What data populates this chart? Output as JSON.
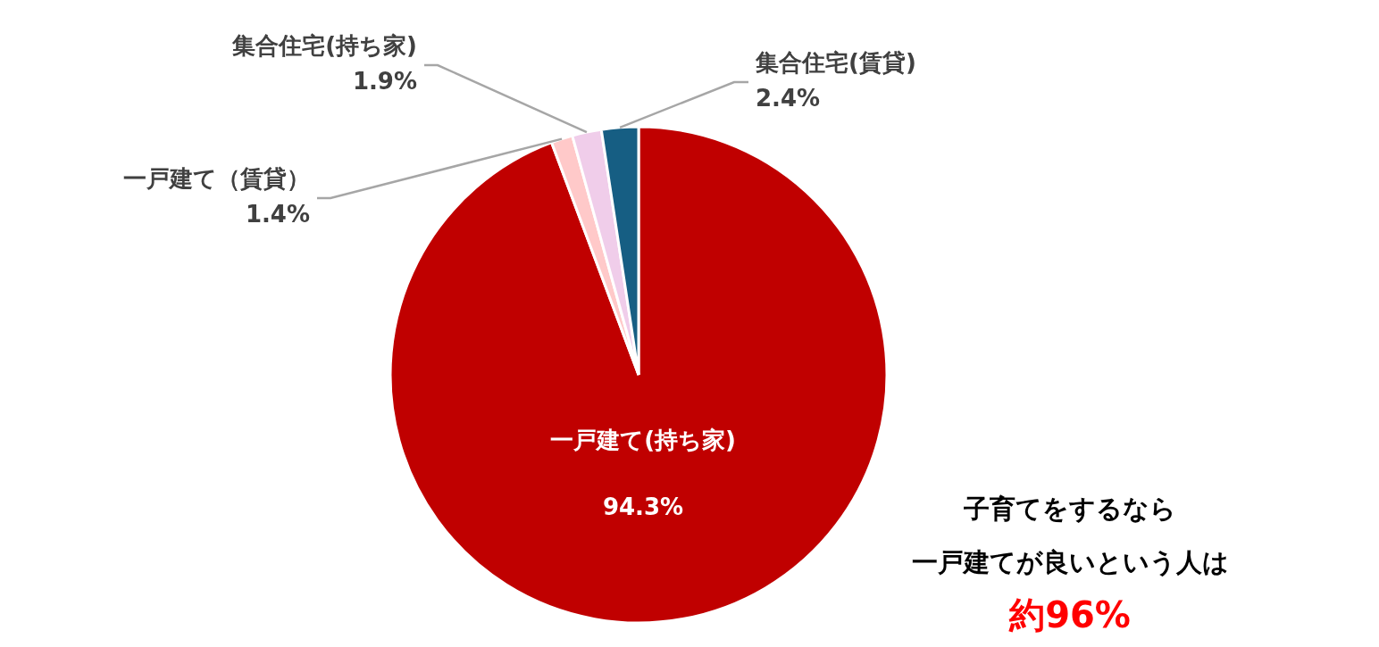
{
  "chart_data": {
    "type": "pie",
    "categories": [
      "一戸建て(持ち家)",
      "一戸建て（賃貸）",
      "集合住宅(持ち家)",
      "集合住宅(賃貸)"
    ],
    "values": [
      94.3,
      1.4,
      1.9,
      2.4
    ],
    "value_labels": [
      "94.3%",
      "1.4%",
      "1.9%",
      "2.4%"
    ],
    "colors": [
      "#c00000",
      "#ffc9c9",
      "#f0cdea",
      "#165e83"
    ],
    "legend": false,
    "annotations": [
      "子育てをするなら",
      "一戸建てが良いという人は",
      "約96%"
    ]
  }
}
